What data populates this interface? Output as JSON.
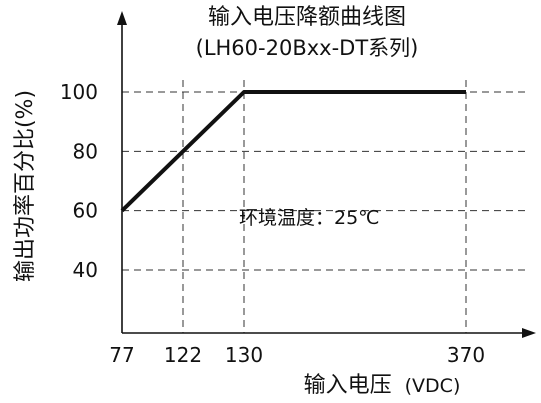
{
  "chart_data": {
    "type": "line",
    "title": "输入电压降额曲线图",
    "subtitle": "(LH60-20Bxx-DT系列)",
    "xlabel": "输入电压",
    "xlabel_unit": "(VDC)",
    "ylabel": "输出功率百分比(%)",
    "x_ticks": [
      77,
      122,
      130,
      370
    ],
    "y_ticks": [
      40,
      60,
      80,
      100
    ],
    "series": [
      {
        "x": [
          77,
          130,
          370
        ],
        "y": [
          60,
          100,
          100
        ]
      }
    ],
    "annotation": "环境温度：25℃",
    "grid": true,
    "grid_style": "dashed"
  },
  "colors": {
    "line": "#111111",
    "grid": "#333333",
    "axis": "#111111"
  }
}
